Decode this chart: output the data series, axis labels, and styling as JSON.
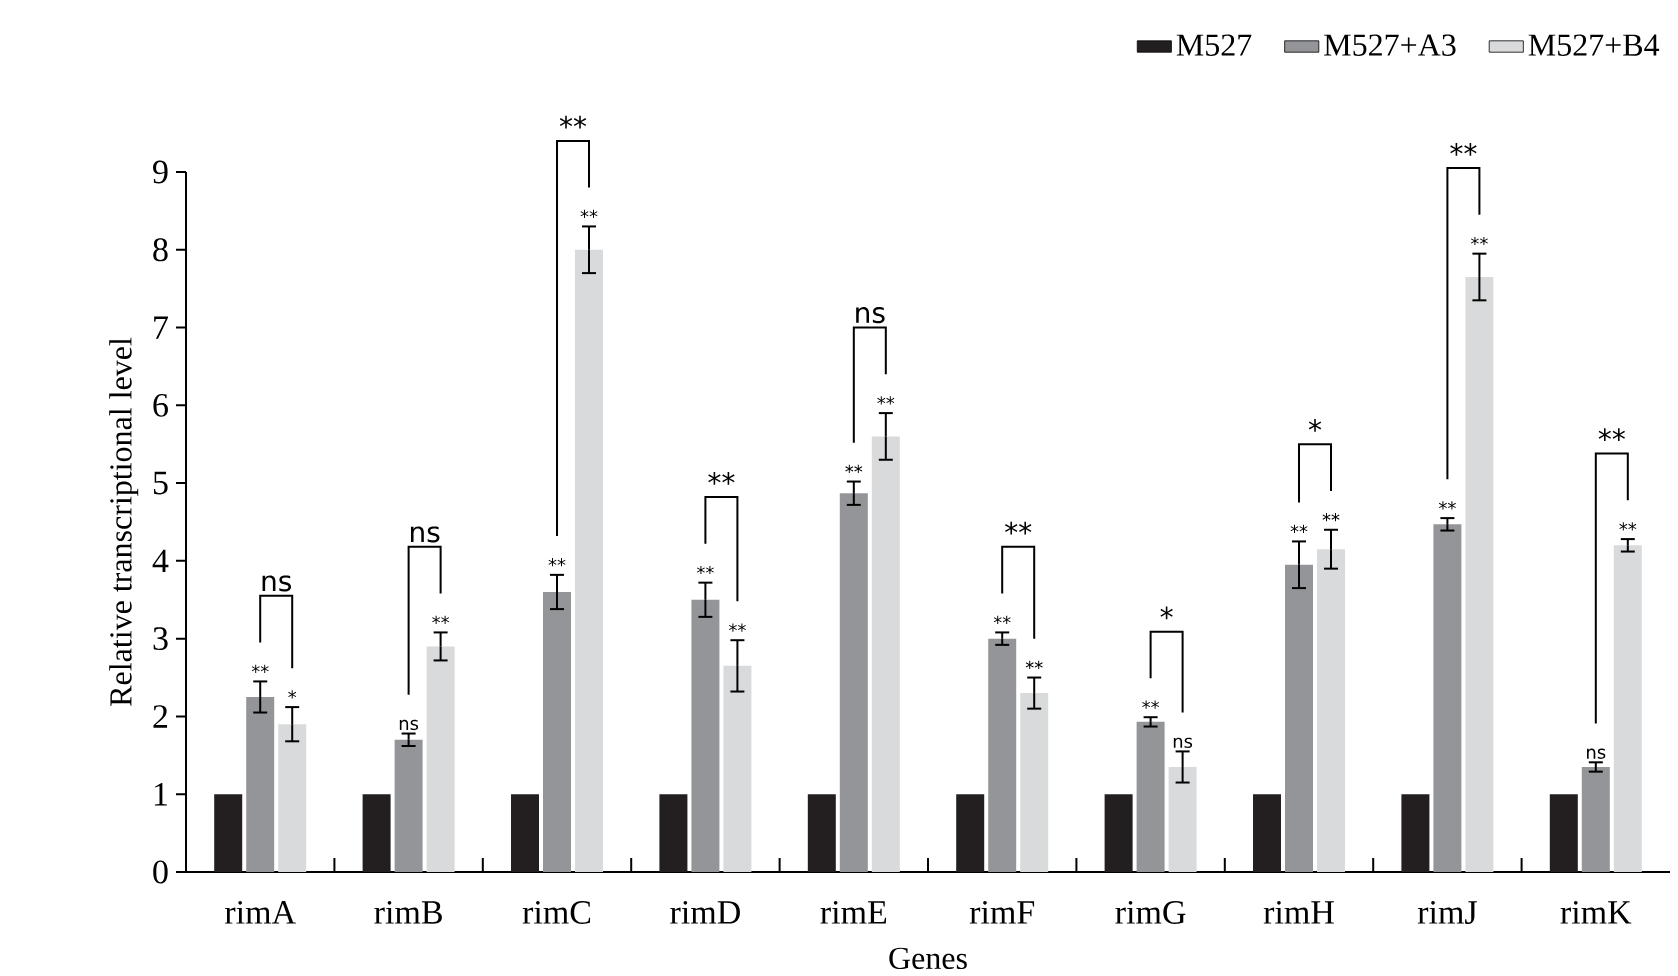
{
  "chart_data": {
    "type": "bar",
    "xlabel": "Genes",
    "ylabel": "Relative transcriptional level",
    "categories": [
      "rimA",
      "rimB",
      "rimC",
      "rimD",
      "rimE",
      "rimF",
      "rimG",
      "rimH",
      "rimJ",
      "rimK"
    ],
    "series": [
      {
        "name": "M527",
        "color": "#231f20",
        "values": [
          1,
          1,
          1,
          1,
          1,
          1,
          1,
          1,
          1,
          1
        ]
      },
      {
        "name": "M527+A3",
        "color": "#939598",
        "values": [
          2.25,
          1.7,
          3.6,
          3.5,
          4.87,
          3.0,
          1.93,
          3.95,
          4.47,
          1.35
        ],
        "errors": [
          0.2,
          0.08,
          0.22,
          0.22,
          0.15,
          0.08,
          0.06,
          0.3,
          0.08,
          0.06
        ],
        "value_labels": [
          "**",
          "ns",
          "**",
          "**",
          "**",
          "**",
          "**",
          "**",
          "**",
          "ns"
        ]
      },
      {
        "name": "M527+B4",
        "color": "#d9dadb",
        "values": [
          1.9,
          2.9,
          8.0,
          2.65,
          5.6,
          2.3,
          1.35,
          4.15,
          7.65,
          4.2
        ],
        "errors": [
          0.22,
          0.18,
          0.3,
          0.33,
          0.3,
          0.2,
          0.2,
          0.25,
          0.3,
          0.08
        ],
        "value_labels": [
          "*",
          "**",
          "**",
          "**",
          "**",
          "**",
          "ns",
          "**",
          "**",
          "**"
        ]
      }
    ],
    "ylim": [
      0,
      9
    ],
    "yticks": [
      0,
      1,
      2,
      3,
      4,
      5,
      6,
      7,
      8,
      9
    ],
    "legend": "top right",
    "annotations": [
      "ns",
      "ns",
      "**",
      "**",
      "ns",
      "**",
      "*",
      "*",
      "**",
      "**"
    ]
  }
}
